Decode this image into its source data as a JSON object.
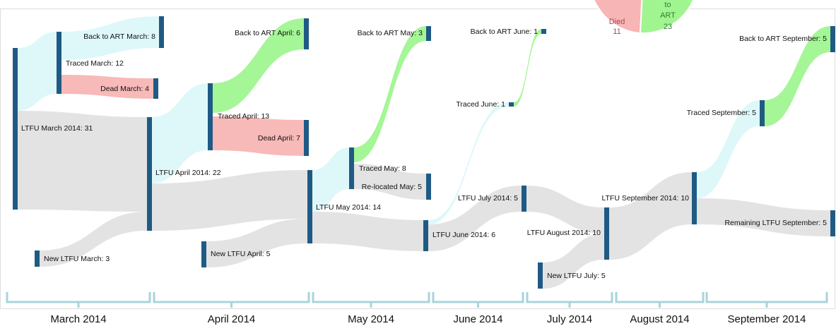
{
  "nodes": [
    {
      "label": "LTFU March 2014: 31"
    },
    {
      "label": "Back to ART March: 8"
    },
    {
      "label": "Traced March: 12"
    },
    {
      "label": "Dead March: 4"
    },
    {
      "label": "New LTFU March: 3"
    },
    {
      "label": "LTFU April 2014: 22"
    },
    {
      "label": "Back to ART April: 6"
    },
    {
      "label": "Traced April: 13"
    },
    {
      "label": "Dead April: 7"
    },
    {
      "label": "New LTFU April: 5"
    },
    {
      "label": "LTFU May 2014: 14"
    },
    {
      "label": "Back to ART May: 3"
    },
    {
      "label": "Traced May: 8"
    },
    {
      "label": "Re-located May: 5"
    },
    {
      "label": "LTFU June 2014: 6"
    },
    {
      "label": "Back to ART June: 1"
    },
    {
      "label": "Traced June: 1"
    },
    {
      "label": "LTFU July 2014: 5"
    },
    {
      "label": "LTFU August 2014: 10"
    },
    {
      "label": "New LTFU July: 5"
    },
    {
      "label": "LTFU September 2014: 10"
    },
    {
      "label": "Traced September: 5"
    },
    {
      "label": "Back to ART September: 5"
    },
    {
      "label": "Remaining LTFU September: 5"
    }
  ],
  "months": [
    "March 2014",
    "April 2014",
    "May 2014",
    "June 2014",
    "July 2014",
    "August 2014",
    "September 2014"
  ],
  "pie": {
    "died": {
      "label": "Died",
      "value": 11
    },
    "back": {
      "lines": [
        "to",
        "ART"
      ],
      "value": 23
    }
  }
}
